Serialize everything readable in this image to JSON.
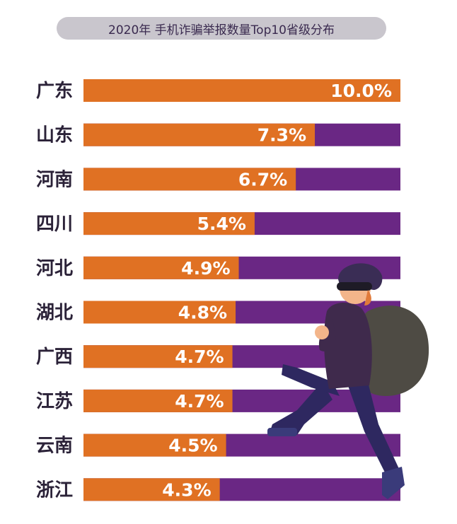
{
  "title": "2020年 手机诈骗举报数量Top10省级分布",
  "colors": {
    "orange": "#e07123",
    "purple": "#6a2784",
    "title_bg": "#c9c6cd",
    "label": "#2b2238"
  },
  "chart_data": {
    "type": "bar",
    "orientation": "horizontal",
    "title": "2020年 手机诈骗举报数量Top10省级分布",
    "categories": [
      "广东",
      "山东",
      "河南",
      "四川",
      "河北",
      "湖北",
      "广西",
      "江苏",
      "云南",
      "浙江"
    ],
    "values": [
      10.0,
      7.3,
      6.7,
      5.4,
      4.9,
      4.8,
      4.7,
      4.7,
      4.5,
      4.3
    ],
    "value_labels": [
      "10.0%",
      "7.3%",
      "6.7%",
      "5.4%",
      "4.9%",
      "4.8%",
      "4.7%",
      "4.7%",
      "4.5%",
      "4.3%"
    ],
    "xlim": [
      0,
      10
    ],
    "unit": "%",
    "grid": false,
    "legend": "none"
  }
}
